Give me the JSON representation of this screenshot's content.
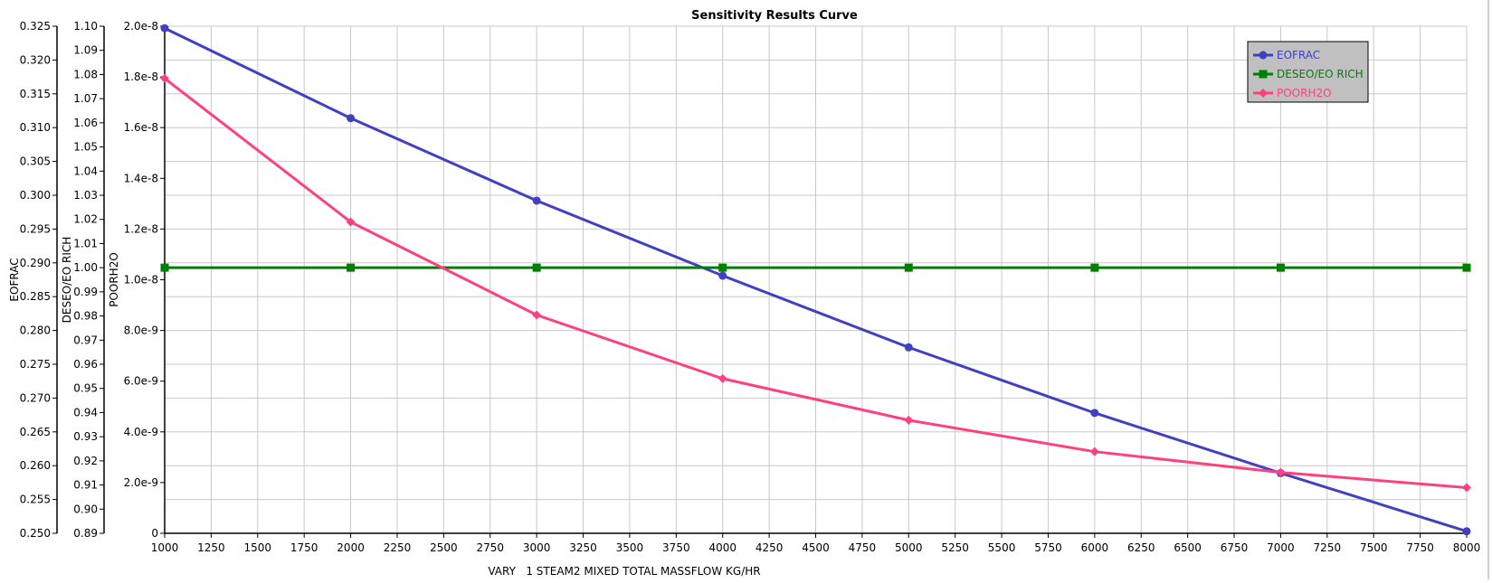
{
  "chart_data": {
    "type": "line",
    "title": "Sensitivity Results Curve",
    "xlabel": "VARY   1 STEAM2 MIXED TOTAL MASSFLOW KG/HR",
    "xlim": [
      1000,
      8000
    ],
    "x_ticks": [
      "1000",
      "1250",
      "1500",
      "1750",
      "2000",
      "2250",
      "2500",
      "2750",
      "3000",
      "3250",
      "3500",
      "3750",
      "4000",
      "4250",
      "4500",
      "4750",
      "5000",
      "5250",
      "5500",
      "5750",
      "6000",
      "6250",
      "6500",
      "6750",
      "7000",
      "7250",
      "7500",
      "7750",
      "8000"
    ],
    "x": [
      1000,
      2000,
      3000,
      4000,
      5000,
      6000,
      7000,
      8000
    ],
    "grid": true,
    "legend_position": "top-right",
    "y_axes": [
      {
        "label": "EOFRAC",
        "ylim": [
          0.25,
          0.325
        ],
        "ticks": [
          "0.250",
          "0.255",
          "0.260",
          "0.265",
          "0.270",
          "0.275",
          "0.280",
          "0.285",
          "0.290",
          "0.295",
          "0.300",
          "0.305",
          "0.310",
          "0.315",
          "0.320",
          "0.325"
        ]
      },
      {
        "label": "DESEO/EO RICH",
        "ylim": [
          0.89,
          1.1
        ],
        "ticks": [
          "0.89",
          "0.90",
          "0.91",
          "0.92",
          "0.93",
          "0.94",
          "0.95",
          "0.96",
          "0.97",
          "0.98",
          "0.99",
          "1.00",
          "1.01",
          "1.02",
          "1.03",
          "1.04",
          "1.05",
          "1.06",
          "1.07",
          "1.08",
          "1.09",
          "1.10"
        ]
      },
      {
        "label": "POORH2O",
        "ylim": [
          0,
          2e-08
        ],
        "ticks": [
          "0",
          "2.0e-9",
          "4.0e-9",
          "6.0e-9",
          "8.0e-9",
          "1.0e-8",
          "1.2e-8",
          "1.4e-8",
          "1.6e-8",
          "1.8e-8",
          "2.0e-8"
        ]
      }
    ],
    "series": [
      {
        "name": "EOFRAC",
        "axis": 0,
        "color": "#4040c0",
        "marker": "circle",
        "values": [
          0.3247,
          0.3114,
          0.2992,
          0.2881,
          0.2775,
          0.2678,
          0.2589,
          0.2503
        ]
      },
      {
        "name": "DESEO/EO RICH",
        "axis": 1,
        "color": "#008000",
        "marker": "square",
        "values": [
          1.0,
          1.0,
          1.0,
          1.0,
          1.0,
          1.0,
          1.0,
          1.0
        ]
      },
      {
        "name": "POORH2O",
        "axis": 2,
        "color": "#ff4080",
        "marker": "diamond",
        "values": [
          1.794e-08,
          1.228e-08,
          8.61e-09,
          6.1e-09,
          4.46e-09,
          3.22e-09,
          2.4e-09,
          1.8e-09
        ]
      }
    ]
  }
}
